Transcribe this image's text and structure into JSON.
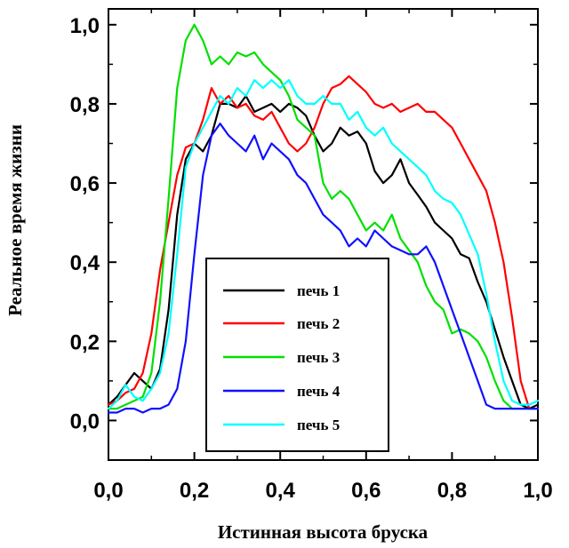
{
  "chart_data": {
    "type": "line",
    "title": "",
    "xlabel": "Истинная высота бруска",
    "ylabel": "Реальное время жизни",
    "xlim": [
      0.0,
      1.0
    ],
    "ylim": [
      -0.1,
      1.04
    ],
    "grid": false,
    "legend_position": "lower-center",
    "x_ticks": [
      {
        "value": 0.0,
        "label": "0,0"
      },
      {
        "value": 0.2,
        "label": "0,2"
      },
      {
        "value": 0.4,
        "label": "0,4"
      },
      {
        "value": 0.6,
        "label": "0,6"
      },
      {
        "value": 0.8,
        "label": "0,8"
      },
      {
        "value": 1.0,
        "label": "1,0"
      }
    ],
    "y_ticks": [
      {
        "value": 0.0,
        "label": "0,0"
      },
      {
        "value": 0.2,
        "label": "0,2"
      },
      {
        "value": 0.4,
        "label": "0,4"
      },
      {
        "value": 0.6,
        "label": "0,6"
      },
      {
        "value": 0.8,
        "label": "0,8"
      },
      {
        "value": 1.0,
        "label": "1,0"
      }
    ],
    "series": [
      {
        "name": "печь 1",
        "color": "#000000",
        "x": [
          0.0,
          0.02,
          0.04,
          0.06,
          0.08,
          0.1,
          0.12,
          0.14,
          0.16,
          0.18,
          0.2,
          0.22,
          0.24,
          0.26,
          0.28,
          0.3,
          0.32,
          0.34,
          0.36,
          0.38,
          0.4,
          0.42,
          0.44,
          0.46,
          0.48,
          0.5,
          0.52,
          0.54,
          0.56,
          0.58,
          0.6,
          0.62,
          0.64,
          0.66,
          0.68,
          0.7,
          0.72,
          0.74,
          0.76,
          0.78,
          0.8,
          0.82,
          0.84,
          0.86,
          0.88,
          0.9,
          0.92,
          0.94,
          0.96,
          0.98,
          1.0
        ],
        "y": [
          0.04,
          0.06,
          0.09,
          0.12,
          0.1,
          0.08,
          0.13,
          0.28,
          0.52,
          0.66,
          0.7,
          0.68,
          0.72,
          0.8,
          0.8,
          0.79,
          0.82,
          0.78,
          0.79,
          0.8,
          0.78,
          0.8,
          0.79,
          0.77,
          0.72,
          0.68,
          0.7,
          0.74,
          0.72,
          0.73,
          0.7,
          0.63,
          0.6,
          0.62,
          0.66,
          0.6,
          0.57,
          0.54,
          0.5,
          0.48,
          0.46,
          0.42,
          0.41,
          0.35,
          0.3,
          0.23,
          0.16,
          0.1,
          0.04,
          0.03,
          0.04
        ]
      },
      {
        "name": "печь 2",
        "color": "#ff0000",
        "x": [
          0.0,
          0.02,
          0.04,
          0.06,
          0.08,
          0.1,
          0.12,
          0.14,
          0.16,
          0.18,
          0.2,
          0.22,
          0.24,
          0.26,
          0.28,
          0.3,
          0.32,
          0.34,
          0.36,
          0.38,
          0.4,
          0.42,
          0.44,
          0.46,
          0.48,
          0.5,
          0.52,
          0.54,
          0.56,
          0.58,
          0.6,
          0.62,
          0.64,
          0.66,
          0.68,
          0.7,
          0.72,
          0.74,
          0.76,
          0.78,
          0.8,
          0.82,
          0.84,
          0.86,
          0.88,
          0.9,
          0.92,
          0.94,
          0.96,
          0.98,
          1.0
        ],
        "y": [
          0.04,
          0.05,
          0.07,
          0.08,
          0.12,
          0.22,
          0.38,
          0.5,
          0.62,
          0.69,
          0.7,
          0.76,
          0.84,
          0.8,
          0.82,
          0.79,
          0.8,
          0.77,
          0.76,
          0.78,
          0.74,
          0.7,
          0.68,
          0.7,
          0.74,
          0.8,
          0.84,
          0.85,
          0.87,
          0.85,
          0.83,
          0.8,
          0.79,
          0.8,
          0.78,
          0.79,
          0.8,
          0.78,
          0.78,
          0.76,
          0.74,
          0.7,
          0.66,
          0.62,
          0.58,
          0.5,
          0.4,
          0.26,
          0.1,
          0.03,
          0.03
        ]
      },
      {
        "name": "печь 3",
        "color": "#00e000",
        "x": [
          0.0,
          0.02,
          0.04,
          0.06,
          0.08,
          0.1,
          0.12,
          0.14,
          0.16,
          0.18,
          0.2,
          0.22,
          0.24,
          0.26,
          0.28,
          0.3,
          0.32,
          0.34,
          0.36,
          0.38,
          0.4,
          0.42,
          0.44,
          0.46,
          0.48,
          0.5,
          0.52,
          0.54,
          0.56,
          0.58,
          0.6,
          0.62,
          0.64,
          0.66,
          0.68,
          0.7,
          0.72,
          0.74,
          0.76,
          0.78,
          0.8,
          0.82,
          0.84,
          0.86,
          0.88,
          0.9,
          0.92,
          0.94,
          0.96,
          0.98,
          1.0
        ],
        "y": [
          0.03,
          0.03,
          0.04,
          0.05,
          0.06,
          0.12,
          0.3,
          0.56,
          0.84,
          0.96,
          1.0,
          0.96,
          0.9,
          0.92,
          0.9,
          0.93,
          0.92,
          0.93,
          0.9,
          0.88,
          0.86,
          0.82,
          0.76,
          0.74,
          0.72,
          0.6,
          0.56,
          0.58,
          0.56,
          0.52,
          0.48,
          0.5,
          0.48,
          0.52,
          0.46,
          0.43,
          0.4,
          0.34,
          0.3,
          0.28,
          0.22,
          0.23,
          0.22,
          0.2,
          0.16,
          0.1,
          0.05,
          0.03,
          0.03,
          0.03,
          0.03
        ]
      },
      {
        "name": "печь 4",
        "color": "#1010ff",
        "x": [
          0.0,
          0.02,
          0.04,
          0.06,
          0.08,
          0.1,
          0.12,
          0.14,
          0.16,
          0.18,
          0.2,
          0.22,
          0.24,
          0.26,
          0.28,
          0.3,
          0.32,
          0.34,
          0.36,
          0.38,
          0.4,
          0.42,
          0.44,
          0.46,
          0.48,
          0.5,
          0.52,
          0.54,
          0.56,
          0.58,
          0.6,
          0.62,
          0.64,
          0.66,
          0.68,
          0.7,
          0.72,
          0.74,
          0.76,
          0.78,
          0.8,
          0.82,
          0.84,
          0.86,
          0.88,
          0.9,
          0.92,
          0.94,
          0.96,
          0.98,
          1.0
        ],
        "y": [
          0.02,
          0.02,
          0.03,
          0.03,
          0.02,
          0.03,
          0.03,
          0.04,
          0.08,
          0.2,
          0.42,
          0.62,
          0.72,
          0.75,
          0.72,
          0.7,
          0.68,
          0.72,
          0.66,
          0.7,
          0.68,
          0.66,
          0.62,
          0.6,
          0.56,
          0.52,
          0.5,
          0.48,
          0.44,
          0.46,
          0.44,
          0.48,
          0.46,
          0.44,
          0.43,
          0.42,
          0.42,
          0.44,
          0.4,
          0.34,
          0.28,
          0.22,
          0.16,
          0.1,
          0.04,
          0.03,
          0.03,
          0.03,
          0.03,
          0.03,
          0.03
        ]
      },
      {
        "name": "печь 5",
        "color": "#00ffff",
        "x": [
          0.0,
          0.02,
          0.04,
          0.06,
          0.08,
          0.1,
          0.12,
          0.14,
          0.16,
          0.18,
          0.2,
          0.22,
          0.24,
          0.26,
          0.28,
          0.3,
          0.32,
          0.34,
          0.36,
          0.38,
          0.4,
          0.42,
          0.44,
          0.46,
          0.48,
          0.5,
          0.52,
          0.54,
          0.56,
          0.58,
          0.6,
          0.62,
          0.64,
          0.66,
          0.68,
          0.7,
          0.72,
          0.74,
          0.76,
          0.78,
          0.8,
          0.82,
          0.84,
          0.86,
          0.88,
          0.9,
          0.92,
          0.94,
          0.96,
          0.98,
          1.0
        ],
        "y": [
          0.03,
          0.05,
          0.09,
          0.06,
          0.05,
          0.08,
          0.12,
          0.22,
          0.42,
          0.64,
          0.7,
          0.74,
          0.78,
          0.82,
          0.8,
          0.84,
          0.82,
          0.86,
          0.84,
          0.86,
          0.84,
          0.86,
          0.82,
          0.8,
          0.8,
          0.82,
          0.8,
          0.8,
          0.76,
          0.78,
          0.74,
          0.72,
          0.74,
          0.7,
          0.68,
          0.66,
          0.64,
          0.62,
          0.58,
          0.56,
          0.55,
          0.52,
          0.47,
          0.42,
          0.32,
          0.2,
          0.1,
          0.05,
          0.04,
          0.04,
          0.05
        ]
      }
    ]
  }
}
